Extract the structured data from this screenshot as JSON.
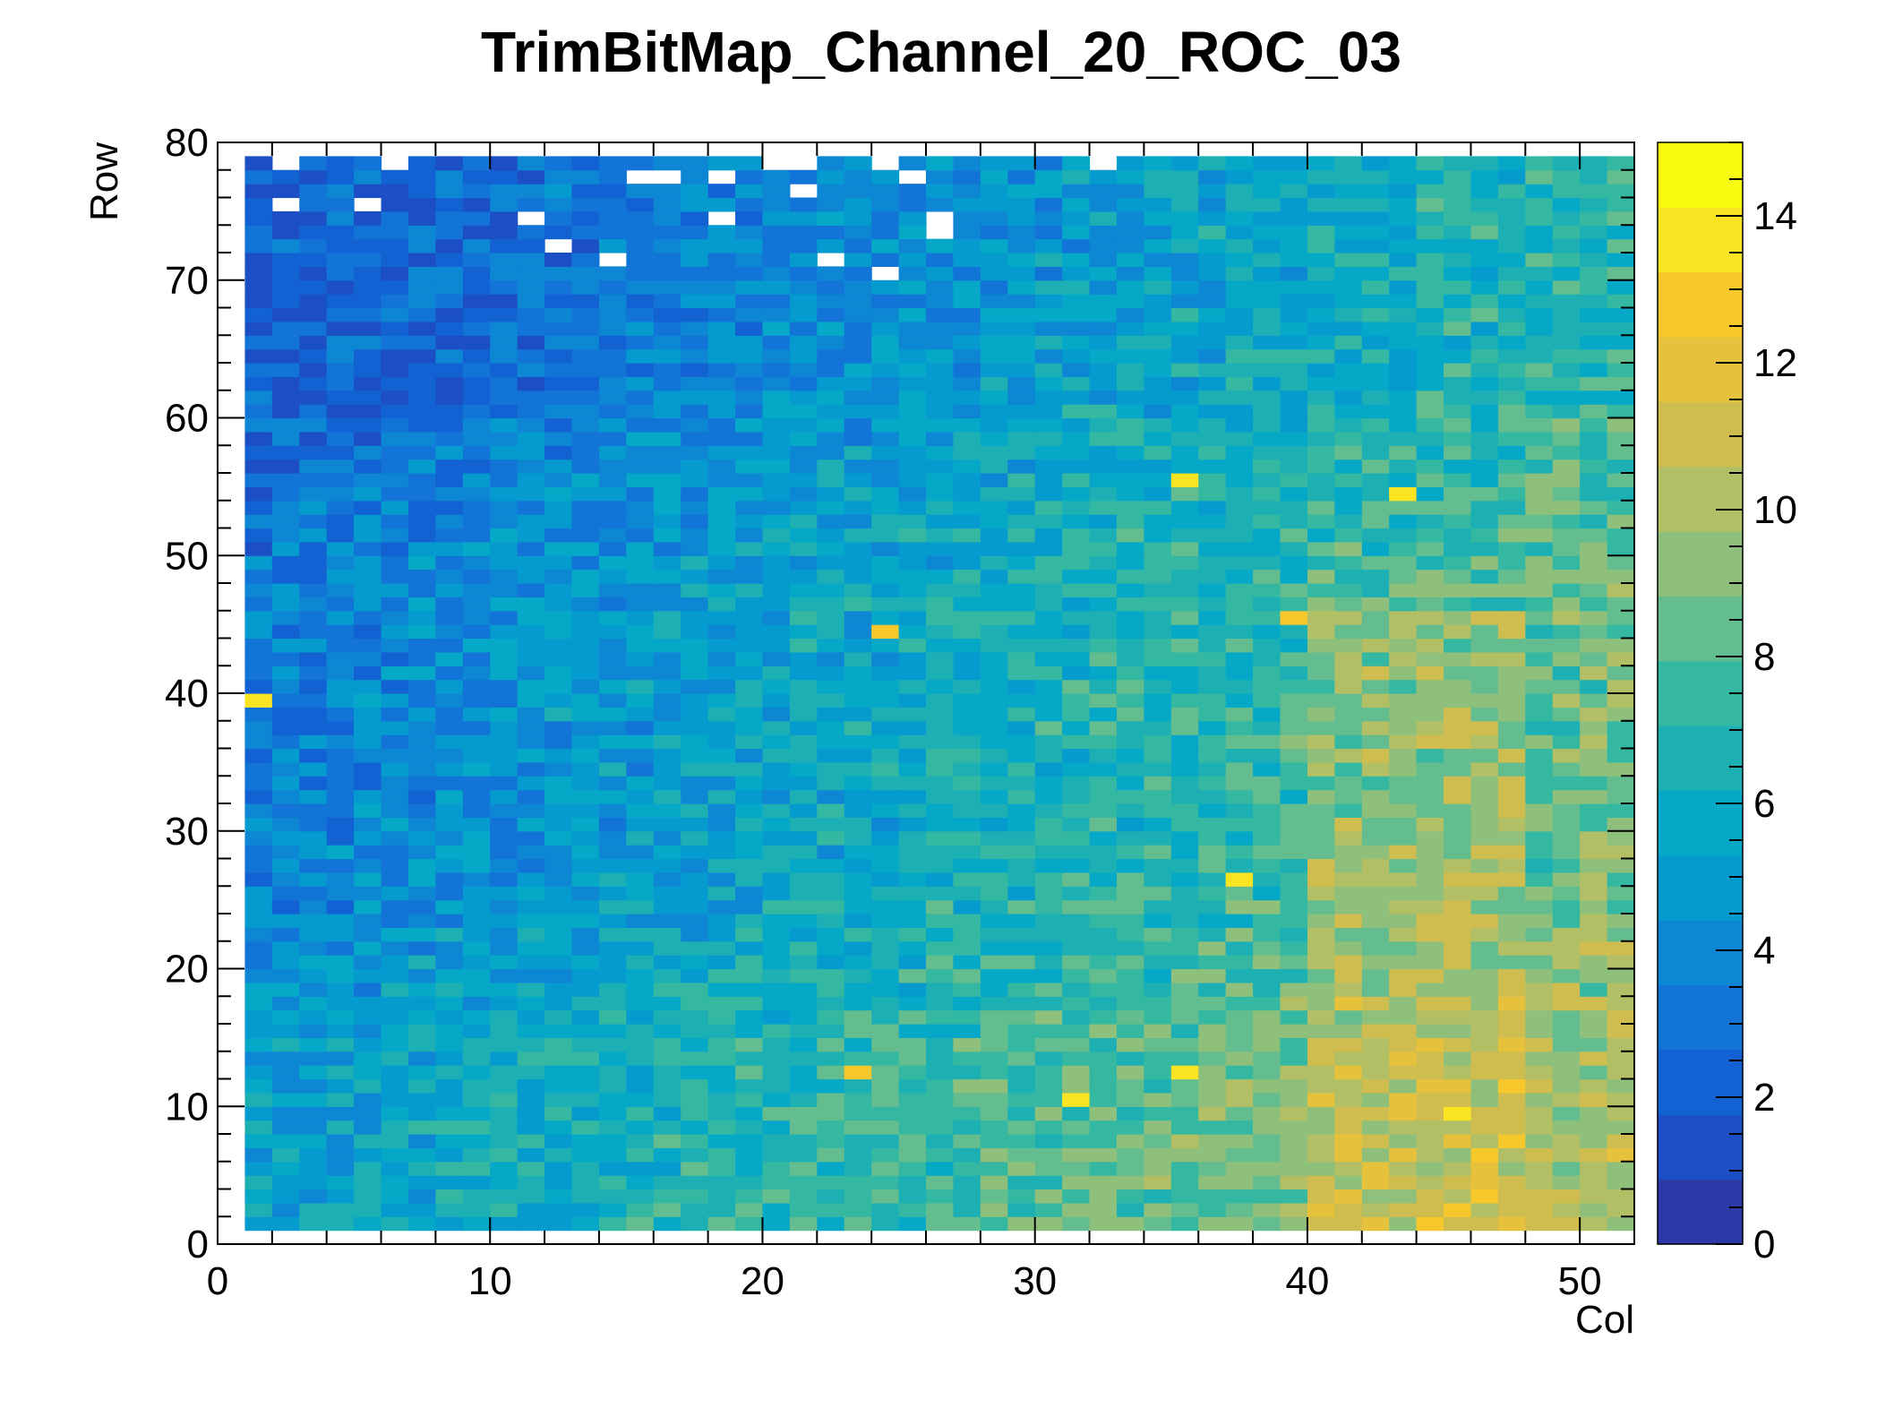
{
  "chart_data": {
    "type": "heatmap",
    "title": "TrimBitMap_Channel_20_ROC_03",
    "xlabel": "Col",
    "ylabel": "Row",
    "xlim": [
      0,
      52
    ],
    "ylim": [
      0,
      80
    ],
    "zlim": [
      0,
      15
    ],
    "x_ticks": [
      "0",
      "10",
      "20",
      "30",
      "40",
      "50"
    ],
    "y_ticks": [
      "0",
      "10",
      "20",
      "30",
      "40",
      "50",
      "60",
      "70",
      "80"
    ],
    "z_ticks": [
      "0",
      "2",
      "4",
      "6",
      "8",
      "10",
      "12",
      "14"
    ],
    "cells": {
      "col_range": [
        1,
        51
      ],
      "row_range": [
        1,
        78
      ],
      "value_trend": "low (~3-5) at top-left rising to high (~11-13) at bottom-right",
      "hot_spots": [
        {
          "col": 1,
          "row": 39,
          "value": 14
        },
        {
          "col": 35,
          "row": 55,
          "value": 14
        },
        {
          "col": 43,
          "row": 54,
          "value": 14
        },
        {
          "col": 45,
          "row": 9,
          "value": 14
        },
        {
          "col": 37,
          "row": 26,
          "value": 14
        },
        {
          "col": 31,
          "row": 10,
          "value": 14
        },
        {
          "col": 35,
          "row": 12,
          "value": 14
        },
        {
          "col": 23,
          "row": 12,
          "value": 13
        },
        {
          "col": 24,
          "row": 44,
          "value": 13
        },
        {
          "col": 39,
          "row": 45,
          "value": 13
        }
      ],
      "empty_cells": [
        {
          "col": 2,
          "row": 78
        },
        {
          "col": 6,
          "row": 78
        },
        {
          "col": 15,
          "row": 77
        },
        {
          "col": 16,
          "row": 77
        },
        {
          "col": 18,
          "row": 77
        },
        {
          "col": 20,
          "row": 78
        },
        {
          "col": 21,
          "row": 78
        },
        {
          "col": 21,
          "row": 76
        },
        {
          "col": 24,
          "row": 78
        },
        {
          "col": 25,
          "row": 77
        },
        {
          "col": 2,
          "row": 75
        },
        {
          "col": 5,
          "row": 75
        },
        {
          "col": 11,
          "row": 74
        },
        {
          "col": 18,
          "row": 74
        },
        {
          "col": 26,
          "row": 74
        },
        {
          "col": 26,
          "row": 73
        },
        {
          "col": 12,
          "row": 72
        },
        {
          "col": 14,
          "row": 71
        },
        {
          "col": 22,
          "row": 71
        },
        {
          "col": 24,
          "row": 70
        },
        {
          "col": 32,
          "row": 78
        }
      ]
    },
    "colorscale": [
      "#2b3aa6",
      "#1c4fc5",
      "#1262d4",
      "#1274d6",
      "#0d86d4",
      "#059bce",
      "#06a8c7",
      "#1cb0b4",
      "#35b8a2",
      "#64bd8e",
      "#8fc07b",
      "#b2bf64",
      "#d0bd4f",
      "#e6c13c",
      "#f7c82c",
      "#fbe523",
      "#f8fa0d"
    ]
  }
}
